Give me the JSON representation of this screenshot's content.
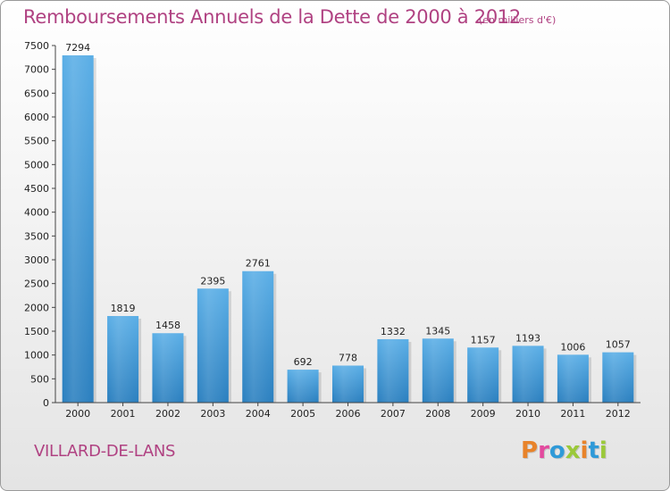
{
  "header": {
    "title": "Remboursements Annuels de la Dette de 2000 à 2012",
    "unit": "(en milliers d'€)"
  },
  "footer": {
    "city": "VILLARD-DE-LANS",
    "logo": "Proxiti"
  },
  "colors": {
    "title": "#b04282",
    "bar_light": "#5aaee6",
    "bar_dark": "#2a7fbf",
    "logo_letters": [
      "#e8832a",
      "#e34a9e",
      "#2f9ad8",
      "#9bc93a",
      "#e8832a",
      "#2f9ad8",
      "#9bc93a"
    ]
  },
  "chart_data": {
    "type": "bar",
    "title": "Remboursements Annuels de la Dette de 2000 à 2012",
    "xlabel": "",
    "ylabel": "",
    "categories": [
      "2000",
      "2001",
      "2002",
      "2003",
      "2004",
      "2005",
      "2006",
      "2007",
      "2008",
      "2009",
      "2010",
      "2011",
      "2012"
    ],
    "values": [
      7294,
      1819,
      1458,
      2395,
      2761,
      692,
      778,
      1332,
      1345,
      1157,
      1193,
      1006,
      1057
    ],
    "ylim": [
      0,
      7500
    ],
    "yticks": [
      0,
      500,
      1000,
      1500,
      2000,
      2500,
      3000,
      3500,
      4000,
      4500,
      5000,
      5500,
      6000,
      6500,
      7000,
      7500
    ],
    "grid": false,
    "legend": "none"
  }
}
